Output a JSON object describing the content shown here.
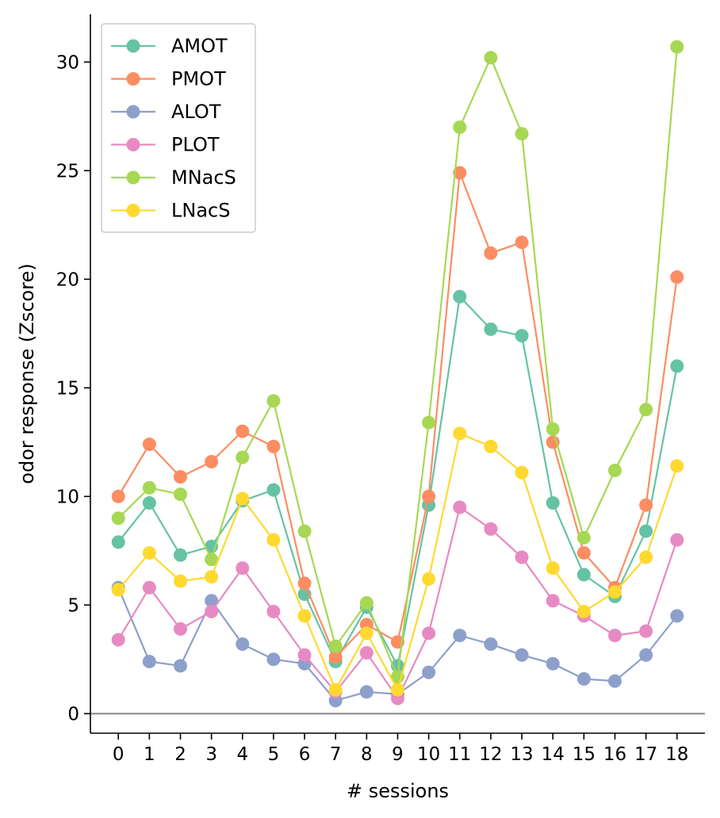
{
  "chart_data": {
    "type": "line",
    "xlabel": "# sessions",
    "ylabel": "odor response (Zscore)",
    "x": [
      0,
      1,
      2,
      3,
      4,
      5,
      6,
      7,
      8,
      9,
      10,
      11,
      12,
      13,
      14,
      15,
      16,
      17,
      18
    ],
    "xlim": [
      -0.9,
      18.9
    ],
    "ylim": [
      -0.9,
      32.2
    ],
    "yticks": [
      0,
      5,
      10,
      15,
      20,
      25,
      30
    ],
    "reference_line_y": 0,
    "reference_line_color": "#888888",
    "legend_position": "top-left",
    "grid": false,
    "series": [
      {
        "name": "AMOT",
        "color": "#66c2a5",
        "values": [
          7.9,
          9.7,
          7.3,
          7.7,
          9.8,
          10.3,
          5.5,
          2.4,
          4.9,
          2.2,
          9.6,
          19.2,
          17.7,
          17.4,
          9.7,
          6.4,
          5.4,
          8.4,
          16.0
        ]
      },
      {
        "name": "PMOT",
        "color": "#fc8d62",
        "values": [
          10.0,
          12.4,
          10.9,
          11.6,
          13.0,
          12.3,
          6.0,
          2.6,
          4.1,
          3.3,
          10.0,
          24.9,
          21.2,
          21.7,
          12.5,
          7.4,
          5.8,
          9.6,
          20.1
        ]
      },
      {
        "name": "ALOT",
        "color": "#8da0cb",
        "values": [
          5.8,
          2.4,
          2.2,
          5.2,
          3.2,
          2.5,
          2.3,
          0.6,
          1.0,
          0.9,
          1.9,
          3.6,
          3.2,
          2.7,
          2.3,
          1.6,
          1.5,
          2.7,
          4.5
        ]
      },
      {
        "name": "PLOT",
        "color": "#e78ac3",
        "values": [
          3.4,
          5.8,
          3.9,
          4.7,
          6.7,
          4.7,
          2.7,
          1.0,
          2.8,
          0.7,
          3.7,
          9.5,
          8.5,
          7.2,
          5.2,
          4.5,
          3.6,
          3.8,
          8.0
        ]
      },
      {
        "name": "MNacS",
        "color": "#a6d854",
        "values": [
          9.0,
          10.4,
          10.1,
          7.1,
          11.8,
          14.4,
          8.4,
          3.1,
          5.1,
          1.7,
          13.4,
          27.0,
          30.2,
          26.7,
          13.1,
          8.1,
          11.2,
          14.0,
          30.7
        ]
      },
      {
        "name": "LNacS",
        "color": "#ffd92f",
        "values": [
          5.7,
          7.4,
          6.1,
          6.3,
          9.9,
          8.0,
          4.5,
          1.1,
          3.7,
          1.1,
          6.2,
          12.9,
          12.3,
          11.1,
          6.7,
          4.7,
          5.6,
          7.2,
          11.4
        ]
      }
    ]
  }
}
